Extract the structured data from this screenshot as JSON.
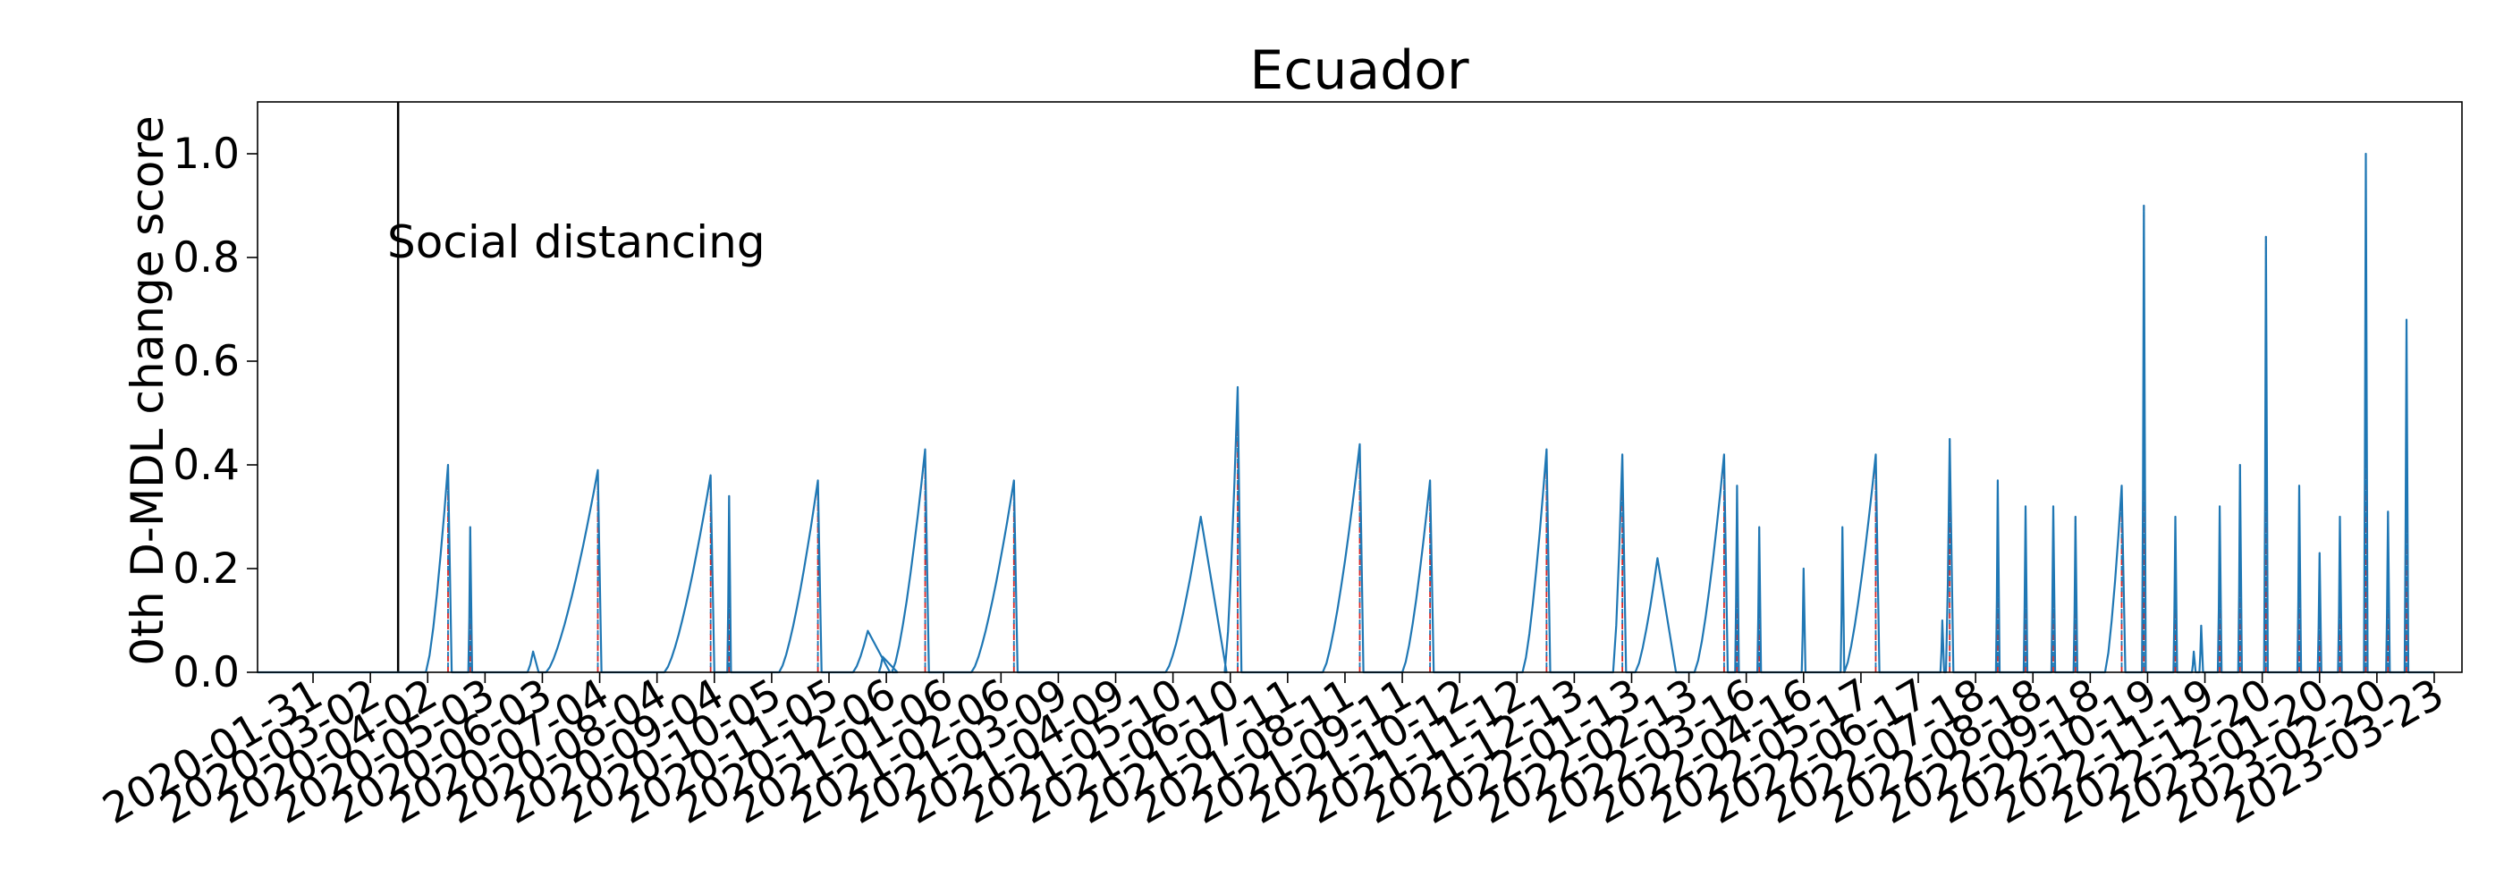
{
  "chart_data": {
    "type": "line",
    "title": "Ecuador",
    "xlabel": "",
    "ylabel": "0th D-MDL change score",
    "x_start": "2020-01-01",
    "x_end": "2023-04-07",
    "ylim": [
      0,
      1.1
    ],
    "yticks": [
      0.0,
      0.2,
      0.4,
      0.6,
      0.8,
      1.0
    ],
    "ytick_labels": [
      "0.0",
      "0.2",
      "0.4",
      "0.6",
      "0.8",
      "1.0"
    ],
    "xticks": [
      "2020-01-31",
      "2020-03-02",
      "2020-04-02",
      "2020-05-03",
      "2020-06-03",
      "2020-07-04",
      "2020-08-04",
      "2020-09-04",
      "2020-10-05",
      "2020-11-05",
      "2020-12-06",
      "2021-01-06",
      "2021-02-06",
      "2021-03-09",
      "2021-04-09",
      "2021-05-10",
      "2021-06-10",
      "2021-07-11",
      "2021-08-11",
      "2021-09-11",
      "2021-10-12",
      "2021-11-12",
      "2021-12-13",
      "2022-01-13",
      "2022-02-13",
      "2022-03-16",
      "2022-04-16",
      "2022-05-17",
      "2022-06-17",
      "2022-07-18",
      "2022-08-18",
      "2022-09-18",
      "2022-10-19",
      "2022-11-19",
      "2022-12-20",
      "2023-01-20",
      "2023-02-20",
      "2023-03-23"
    ],
    "grid": false,
    "colors": {
      "score_line": "#1f77b4",
      "alarm_line": "#d62728",
      "event_line": "#000000"
    },
    "event": {
      "date": "2020-03-17",
      "label": "Social distancing"
    },
    "bursts": [
      {
        "start": "2020-04-01",
        "peak": "2020-04-13",
        "end": "2020-04-15",
        "value": 0.4
      },
      {
        "start": "2020-04-24",
        "peak": "2020-04-25",
        "end": "2020-04-26",
        "value": 0.28
      },
      {
        "start": "2020-05-26",
        "peak": "2020-05-29",
        "end": "2020-06-01",
        "value": 0.04
      },
      {
        "start": "2020-06-05",
        "peak": "2020-07-03",
        "end": "2020-07-05",
        "value": 0.39
      },
      {
        "start": "2020-08-08",
        "peak": "2020-09-02",
        "end": "2020-09-04",
        "value": 0.38
      },
      {
        "start": "2020-09-11",
        "peak": "2020-09-12",
        "end": "2020-09-13",
        "value": 0.34
      },
      {
        "start": "2020-10-09",
        "peak": "2020-10-30",
        "end": "2020-11-01",
        "value": 0.37
      },
      {
        "start": "2020-11-18",
        "peak": "2020-11-26",
        "end": "2020-12-08",
        "value": 0.08
      },
      {
        "start": "2020-12-02",
        "peak": "2020-12-04",
        "end": "2020-12-12",
        "value": 0.03
      },
      {
        "start": "2020-12-09",
        "peak": "2020-12-27",
        "end": "2020-12-29",
        "value": 0.43
      },
      {
        "start": "2021-01-21",
        "peak": "2021-02-13",
        "end": "2021-02-15",
        "value": 0.37
      },
      {
        "start": "2021-05-06",
        "peak": "2021-05-25",
        "end": "2021-06-08",
        "value": 0.3
      },
      {
        "start": "2021-06-07",
        "peak": "2021-06-14",
        "end": "2021-06-16",
        "value": 0.55
      },
      {
        "start": "2021-07-30",
        "peak": "2021-08-19",
        "end": "2021-08-21",
        "value": 0.44
      },
      {
        "start": "2021-09-11",
        "peak": "2021-09-26",
        "end": "2021-09-28",
        "value": 0.37
      },
      {
        "start": "2021-11-15",
        "peak": "2021-11-28",
        "end": "2021-11-30",
        "value": 0.43
      },
      {
        "start": "2022-01-03",
        "peak": "2022-01-08",
        "end": "2022-01-10",
        "value": 0.42
      },
      {
        "start": "2022-01-15",
        "peak": "2022-01-27",
        "end": "2022-02-06",
        "value": 0.22
      },
      {
        "start": "2022-02-16",
        "peak": "2022-03-04",
        "end": "2022-03-06",
        "value": 0.42
      },
      {
        "start": "2022-03-10",
        "peak": "2022-03-11",
        "end": "2022-03-12",
        "value": 0.36
      },
      {
        "start": "2022-03-22",
        "peak": "2022-03-23",
        "end": "2022-03-24",
        "value": 0.28
      },
      {
        "start": "2022-04-15",
        "peak": "2022-04-16",
        "end": "2022-04-17",
        "value": 0.2
      },
      {
        "start": "2022-05-06",
        "peak": "2022-05-07",
        "end": "2022-05-08",
        "value": 0.28
      },
      {
        "start": "2022-05-08",
        "peak": "2022-05-25",
        "end": "2022-05-27",
        "value": 0.42
      },
      {
        "start": "2022-06-29",
        "peak": "2022-06-30",
        "end": "2022-07-01",
        "value": 0.1
      },
      {
        "start": "2022-07-02",
        "peak": "2022-07-04",
        "end": "2022-07-06",
        "value": 0.45
      },
      {
        "start": "2022-07-29",
        "peak": "2022-07-30",
        "end": "2022-07-31",
        "value": 0.37
      },
      {
        "start": "2022-08-13",
        "peak": "2022-08-14",
        "end": "2022-08-15",
        "value": 0.32
      },
      {
        "start": "2022-08-28",
        "peak": "2022-08-29",
        "end": "2022-08-30",
        "value": 0.32
      },
      {
        "start": "2022-09-09",
        "peak": "2022-09-10",
        "end": "2022-09-11",
        "value": 0.3
      },
      {
        "start": "2022-09-26",
        "peak": "2022-10-05",
        "end": "2022-10-07",
        "value": 0.36
      },
      {
        "start": "2022-10-16",
        "peak": "2022-10-17",
        "end": "2022-10-18",
        "value": 0.9
      },
      {
        "start": "2022-11-02",
        "peak": "2022-11-03",
        "end": "2022-11-04",
        "value": 0.3
      },
      {
        "start": "2022-11-12",
        "peak": "2022-11-13",
        "end": "2022-11-14",
        "value": 0.04
      },
      {
        "start": "2022-11-16",
        "peak": "2022-11-17",
        "end": "2022-11-18",
        "value": 0.09
      },
      {
        "start": "2022-11-26",
        "peak": "2022-11-27",
        "end": "2022-11-28",
        "value": 0.32
      },
      {
        "start": "2022-12-07",
        "peak": "2022-12-08",
        "end": "2022-12-09",
        "value": 0.4
      },
      {
        "start": "2022-12-21",
        "peak": "2022-12-22",
        "end": "2022-12-23",
        "value": 0.84
      },
      {
        "start": "2023-01-08",
        "peak": "2023-01-09",
        "end": "2023-01-10",
        "value": 0.36
      },
      {
        "start": "2023-01-19",
        "peak": "2023-01-20",
        "end": "2023-01-21",
        "value": 0.23
      },
      {
        "start": "2023-01-30",
        "peak": "2023-01-31",
        "end": "2023-02-01",
        "value": 0.3
      },
      {
        "start": "2023-02-13",
        "peak": "2023-02-14",
        "end": "2023-02-15",
        "value": 1.0
      },
      {
        "start": "2023-02-25",
        "peak": "2023-02-26",
        "end": "2023-02-27",
        "value": 0.31
      },
      {
        "start": "2023-03-07",
        "peak": "2023-03-08",
        "end": "2023-03-09",
        "value": 0.68
      }
    ],
    "alarms": [
      "2020-04-13",
      "2020-04-25",
      "2020-07-03",
      "2020-09-02",
      "2020-09-12",
      "2020-10-30",
      "2020-12-27",
      "2021-02-13",
      "2021-06-14",
      "2021-08-19",
      "2021-09-26",
      "2021-11-28",
      "2022-01-08",
      "2022-03-04",
      "2022-03-11",
      "2022-03-23",
      "2022-05-25",
      "2022-07-04",
      "2022-07-30",
      "2022-08-14",
      "2022-08-29",
      "2022-09-10",
      "2022-10-05",
      "2022-10-17",
      "2022-11-03",
      "2022-11-27",
      "2022-12-08",
      "2022-12-22",
      "2023-01-09",
      "2023-01-20",
      "2023-01-31",
      "2023-02-14",
      "2023-02-26",
      "2023-03-08"
    ]
  }
}
